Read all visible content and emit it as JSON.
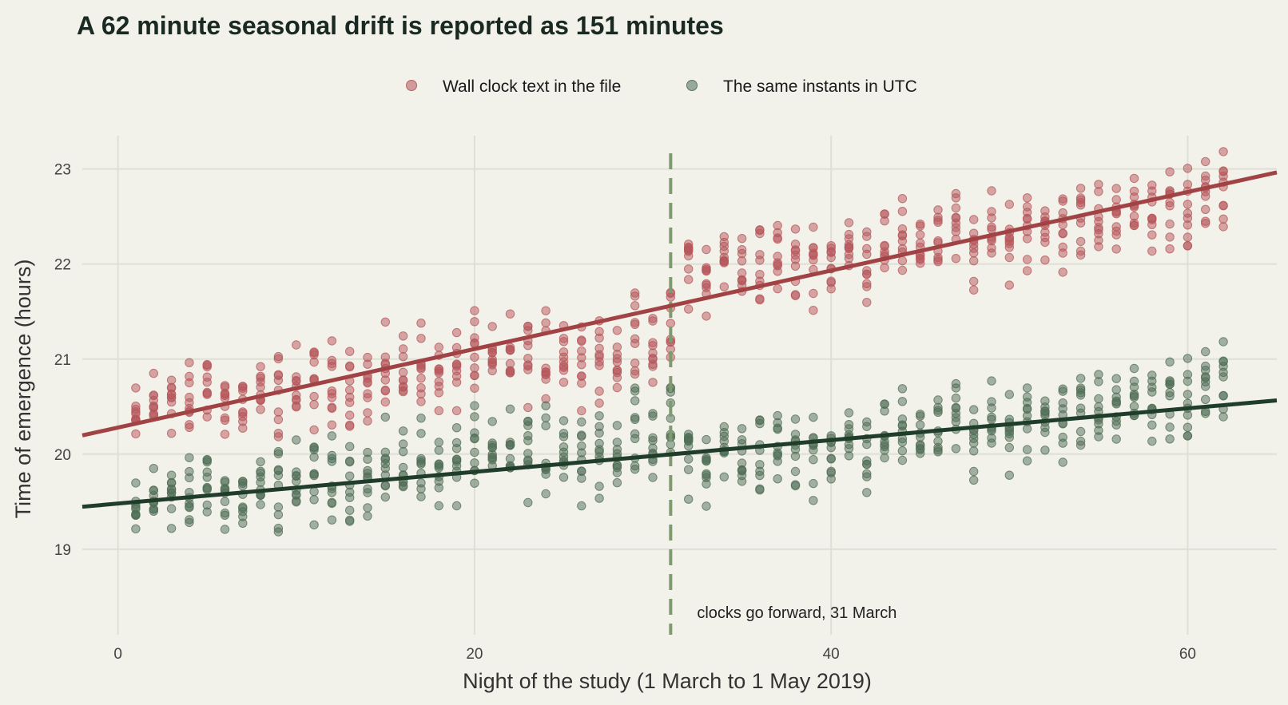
{
  "chart_data": {
    "type": "scatter",
    "title": "A 62 minute seasonal drift is reported as 151 minutes",
    "xlabel": "Night of the study (1 March to 1 May 2019)",
    "ylabel": "Time of emergence (hours)",
    "xlim": [
      -2,
      65
    ],
    "ylim": [
      18.1,
      23.35
    ],
    "xticks": [
      0,
      20,
      40,
      60
    ],
    "yticks": [
      19,
      20,
      21,
      22,
      23
    ],
    "grid": true,
    "legend_position": "top",
    "annotation": {
      "x": 31,
      "text": "clocks go forward, 31 March",
      "line_style": "dashed",
      "color": "#7f9a6e"
    },
    "points_per_night": 10,
    "n_nights": 62,
    "series": [
      {
        "name": "Wall clock text in the file",
        "color": "#b5565a",
        "trend_color": "#a14245",
        "trend": {
          "intercept": 20.28,
          "slope": 0.0413
        },
        "nightly_mean": [
          20.33,
          20.55,
          20.62,
          20.48,
          20.7,
          20.59,
          20.52,
          20.6,
          20.63,
          20.68,
          20.7,
          20.74,
          20.79,
          20.76,
          20.81,
          20.86,
          20.97,
          20.82,
          20.88,
          20.99,
          20.9,
          21.05,
          21.01,
          21.02,
          21.12,
          21.0,
          21.15,
          21.0,
          21.2,
          21.2,
          21.25,
          22.02,
          21.83,
          22.09,
          21.92,
          22.02,
          22.09,
          21.99,
          22.07,
          22.06,
          22.12,
          22.12,
          22.28,
          22.18,
          22.26,
          22.26,
          22.34,
          22.12,
          22.24,
          22.34,
          22.39,
          22.48,
          22.37,
          22.44,
          22.46,
          22.6,
          22.51,
          22.54,
          22.62,
          22.59,
          22.68,
          22.7
        ],
        "spread": 0.32
      },
      {
        "name": "The same instants in UTC",
        "color": "#4f6d55",
        "trend_color": "#1f3d2a",
        "trend": {
          "intercept": 19.48,
          "slope": 0.0167
        },
        "nightly_mean": [
          19.33,
          19.55,
          19.62,
          19.48,
          19.7,
          19.59,
          19.52,
          19.6,
          19.63,
          19.68,
          19.7,
          19.74,
          19.79,
          19.76,
          19.81,
          19.86,
          19.97,
          19.82,
          19.88,
          19.99,
          19.9,
          20.05,
          20.01,
          20.02,
          20.12,
          20.0,
          20.15,
          20.0,
          20.2,
          20.2,
          20.25,
          20.02,
          19.83,
          20.09,
          19.92,
          20.02,
          20.09,
          19.99,
          20.07,
          20.06,
          20.12,
          20.12,
          20.28,
          20.18,
          20.26,
          20.26,
          20.34,
          20.12,
          20.24,
          20.34,
          20.39,
          20.48,
          20.37,
          20.44,
          20.46,
          20.6,
          20.51,
          20.54,
          20.62,
          20.59,
          20.68,
          20.7
        ],
        "spread": 0.32
      }
    ]
  }
}
